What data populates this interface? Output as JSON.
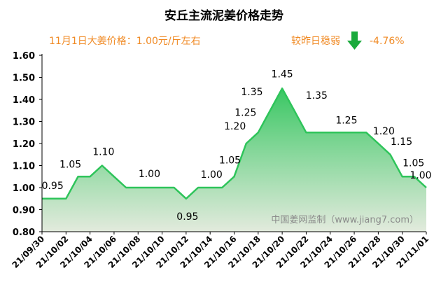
{
  "chart_data": {
    "type": "area",
    "title": "安丘主流泥姜价格走势",
    "subtitle_left": "11月1日大姜价格：1.00元/斤左右",
    "subtitle_right_label": "较昨日稳弱",
    "subtitle_right_change": "-4.76%",
    "watermark": "中国姜网监制（www.jiang7.com）",
    "ylim": [
      0.8,
      1.6
    ],
    "yticks": [
      "0.80",
      "0.90",
      "1.00",
      "1.10",
      "1.20",
      "1.30",
      "1.40",
      "1.50",
      "1.60"
    ],
    "xtick_labels": [
      "21/09/30",
      "21/10/02",
      "21/10/04",
      "21/10/06",
      "21/10/08",
      "21/10/10",
      "21/10/12",
      "21/10/14",
      "21/10/16",
      "21/10/18",
      "21/10/20",
      "21/10/22",
      "21/10/24",
      "21/10/26",
      "21/10/28",
      "21/10/30",
      "21/11/01"
    ],
    "x": [
      "21/09/30",
      "21/10/01",
      "21/10/02",
      "21/10/03",
      "21/10/04",
      "21/10/05",
      "21/10/06",
      "21/10/07",
      "21/10/08",
      "21/10/09",
      "21/10/10",
      "21/10/11",
      "21/10/12",
      "21/10/13",
      "21/10/14",
      "21/10/15",
      "21/10/16",
      "21/10/17",
      "21/10/18",
      "21/10/19",
      "21/10/20",
      "21/10/21",
      "21/10/22",
      "21/10/23",
      "21/10/24",
      "21/10/25",
      "21/10/26",
      "21/10/27",
      "21/10/28",
      "21/10/29",
      "21/10/30",
      "21/10/31",
      "21/11/01"
    ],
    "values": [
      0.95,
      0.95,
      0.95,
      1.05,
      1.05,
      1.1,
      1.05,
      1.0,
      1.0,
      1.0,
      1.0,
      1.0,
      0.95,
      1.0,
      1.0,
      1.0,
      1.05,
      1.2,
      1.25,
      1.35,
      1.45,
      1.35,
      1.25,
      1.25,
      1.25,
      1.25,
      1.25,
      1.25,
      1.2,
      1.15,
      1.05,
      1.05,
      1.0
    ],
    "data_labels": [
      {
        "i": 1,
        "text": "0.95"
      },
      {
        "i": 4,
        "text": "1.05"
      },
      {
        "i": 5,
        "text": "1.10"
      },
      {
        "i": 9,
        "text": "1.00"
      },
      {
        "i": 12,
        "text": "0.95"
      },
      {
        "i": 14,
        "text": "1.00"
      },
      {
        "i": 16,
        "text": "1.05"
      },
      {
        "i": 17,
        "text": "1.20"
      },
      {
        "i": 18,
        "text": "1.25"
      },
      {
        "i": 19,
        "text": "1.35"
      },
      {
        "i": 20,
        "text": "1.45"
      },
      {
        "i": 21,
        "text": "1.35"
      },
      {
        "i": 25,
        "text": "1.25"
      },
      {
        "i": 28,
        "text": "1.20"
      },
      {
        "i": 29,
        "text": "1.15"
      },
      {
        "i": 30,
        "text": "1.05"
      },
      {
        "i": 32,
        "text": "1.00"
      }
    ],
    "colors": {
      "line": "#2ec45a",
      "fill_top": "#2ec45a",
      "fill_bottom": "#dfe8d9",
      "arrow": "#1aaa3c",
      "subtitle": "#f08a24"
    },
    "grid": false
  }
}
